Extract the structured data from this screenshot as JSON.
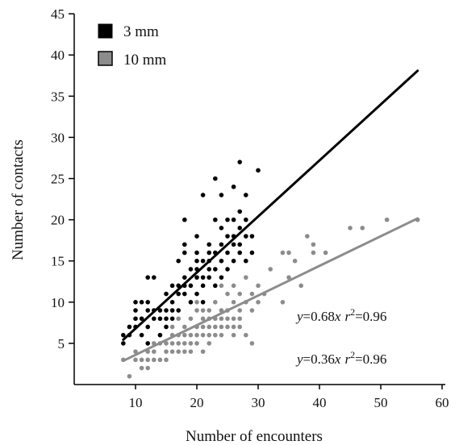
{
  "chart_data": {
    "type": "scatter",
    "xlabel": "Number of encounters",
    "ylabel": "Number of contacts",
    "xlim": [
      0,
      60
    ],
    "ylim": [
      0,
      45
    ],
    "x_ticks": [
      10,
      20,
      30,
      40,
      50,
      60
    ],
    "y_ticks": [
      5,
      10,
      15,
      20,
      25,
      30,
      35,
      40,
      45
    ],
    "grid": false,
    "legend_position": "top-left",
    "series": [
      {
        "name": "3 mm",
        "color": "#000000",
        "fit": {
          "slope": 0.68,
          "x_range": [
            8,
            56
          ]
        },
        "points": [
          [
            8,
            6
          ],
          [
            8,
            5
          ],
          [
            9,
            6
          ],
          [
            9,
            7
          ],
          [
            10,
            7
          ],
          [
            10,
            8
          ],
          [
            10,
            9
          ],
          [
            10,
            10
          ],
          [
            11,
            8
          ],
          [
            11,
            10
          ],
          [
            11,
            6
          ],
          [
            12,
            9
          ],
          [
            12,
            10
          ],
          [
            12,
            13
          ],
          [
            12,
            7
          ],
          [
            12,
            5
          ],
          [
            13,
            8
          ],
          [
            13,
            9
          ],
          [
            13,
            13
          ],
          [
            14,
            6
          ],
          [
            14,
            9
          ],
          [
            14,
            8
          ],
          [
            15,
            9
          ],
          [
            15,
            11
          ],
          [
            15,
            7
          ],
          [
            15,
            8
          ],
          [
            16,
            10
          ],
          [
            16,
            8
          ],
          [
            16,
            12
          ],
          [
            16,
            9
          ],
          [
            17,
            11
          ],
          [
            17,
            9
          ],
          [
            17,
            12
          ],
          [
            17,
            15
          ],
          [
            18,
            16
          ],
          [
            18,
            11
          ],
          [
            18,
            13
          ],
          [
            18,
            20
          ],
          [
            18,
            17
          ],
          [
            18,
            12
          ],
          [
            19,
            12
          ],
          [
            19,
            14
          ],
          [
            19,
            10
          ],
          [
            20,
            16
          ],
          [
            20,
            14
          ],
          [
            20,
            15
          ],
          [
            20,
            18
          ],
          [
            20,
            13
          ],
          [
            20,
            11
          ],
          [
            21,
            13
          ],
          [
            21,
            23
          ],
          [
            21,
            15
          ],
          [
            21,
            12
          ],
          [
            21,
            10
          ],
          [
            22,
            13
          ],
          [
            22,
            14
          ],
          [
            22,
            17
          ],
          [
            22,
            16
          ],
          [
            22,
            15
          ],
          [
            23,
            16
          ],
          [
            23,
            14
          ],
          [
            23,
            20
          ],
          [
            23,
            25
          ],
          [
            23,
            12
          ],
          [
            24,
            17
          ],
          [
            24,
            23
          ],
          [
            24,
            19
          ],
          [
            24,
            15
          ],
          [
            24,
            13
          ],
          [
            25,
            18
          ],
          [
            25,
            16
          ],
          [
            25,
            14
          ],
          [
            25,
            20
          ],
          [
            26,
            17
          ],
          [
            26,
            18
          ],
          [
            26,
            15
          ],
          [
            26,
            24
          ],
          [
            26,
            20
          ],
          [
            27,
            27
          ],
          [
            27,
            17
          ],
          [
            27,
            19
          ],
          [
            27,
            21
          ],
          [
            27,
            16
          ],
          [
            28,
            18
          ],
          [
            28,
            20
          ],
          [
            28,
            15
          ],
          [
            28,
            23
          ],
          [
            29,
            18
          ],
          [
            29,
            16
          ],
          [
            30,
            26
          ]
        ]
      },
      {
        "name": "10 mm",
        "color": "#8c8c8c",
        "fit": {
          "slope": 0.36,
          "x_range": [
            8,
            56
          ]
        },
        "points": [
          [
            8,
            3
          ],
          [
            9,
            1
          ],
          [
            10,
            3
          ],
          [
            10,
            4
          ],
          [
            11,
            2
          ],
          [
            11,
            3
          ],
          [
            12,
            2
          ],
          [
            12,
            4
          ],
          [
            12,
            3
          ],
          [
            13,
            5
          ],
          [
            13,
            3
          ],
          [
            13,
            4
          ],
          [
            14,
            3
          ],
          [
            14,
            5
          ],
          [
            14,
            6
          ],
          [
            15,
            3
          ],
          [
            15,
            4
          ],
          [
            15,
            5
          ],
          [
            16,
            5
          ],
          [
            16,
            6
          ],
          [
            16,
            7
          ],
          [
            16,
            4
          ],
          [
            17,
            6
          ],
          [
            17,
            8
          ],
          [
            17,
            5
          ],
          [
            17,
            4
          ],
          [
            18,
            5
          ],
          [
            18,
            6
          ],
          [
            18,
            7
          ],
          [
            18,
            4
          ],
          [
            19,
            6
          ],
          [
            19,
            8
          ],
          [
            19,
            5
          ],
          [
            19,
            4
          ],
          [
            20,
            9
          ],
          [
            20,
            6
          ],
          [
            20,
            7
          ],
          [
            20,
            5
          ],
          [
            20,
            10
          ],
          [
            21,
            7
          ],
          [
            21,
            9
          ],
          [
            21,
            6
          ],
          [
            21,
            8
          ],
          [
            21,
            4
          ],
          [
            22,
            8
          ],
          [
            22,
            7
          ],
          [
            22,
            6
          ],
          [
            22,
            9
          ],
          [
            22,
            5
          ],
          [
            23,
            6
          ],
          [
            23,
            10
          ],
          [
            23,
            8
          ],
          [
            23,
            7
          ],
          [
            24,
            7
          ],
          [
            24,
            9
          ],
          [
            24,
            12
          ],
          [
            24,
            8
          ],
          [
            24,
            6
          ],
          [
            25,
            9
          ],
          [
            25,
            11
          ],
          [
            25,
            7
          ],
          [
            25,
            8
          ],
          [
            26,
            10
          ],
          [
            26,
            8
          ],
          [
            26,
            7
          ],
          [
            26,
            12
          ],
          [
            26,
            6
          ],
          [
            27,
            9
          ],
          [
            27,
            11
          ],
          [
            27,
            8
          ],
          [
            27,
            7
          ],
          [
            28,
            13
          ],
          [
            28,
            10
          ],
          [
            28,
            6
          ],
          [
            29,
            11
          ],
          [
            29,
            9
          ],
          [
            29,
            5
          ],
          [
            30,
            10
          ],
          [
            30,
            12
          ],
          [
            31,
            11
          ],
          [
            32,
            14
          ],
          [
            34,
            10
          ],
          [
            34,
            16
          ],
          [
            35,
            13
          ],
          [
            35,
            16
          ],
          [
            36,
            15
          ],
          [
            37,
            12
          ],
          [
            38,
            18
          ],
          [
            39,
            16
          ],
          [
            39,
            17
          ],
          [
            41,
            16
          ],
          [
            45,
            19
          ],
          [
            47,
            19
          ],
          [
            51,
            20
          ],
          [
            56,
            20
          ]
        ]
      }
    ],
    "annotations": [
      {
        "y_part": "y",
        "eq": "=0.68",
        "x_part": "x",
        "r_part": "r",
        "sup": "2",
        "r_value": "=0.96"
      },
      {
        "y_part": "y",
        "eq": "=0.36",
        "x_part": "x",
        "r_part": "r",
        "sup": "2",
        "r_value": "=0.96"
      }
    ]
  }
}
